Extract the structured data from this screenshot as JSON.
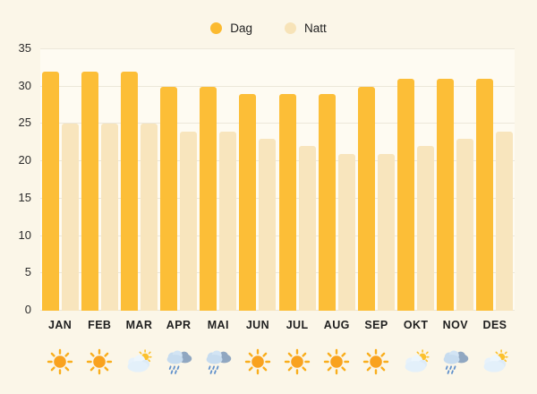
{
  "legend": {
    "items": [
      {
        "label": "Dag",
        "color": "#FBBA30"
      },
      {
        "label": "Natt",
        "color": "#F7E3B8"
      }
    ]
  },
  "chart_data": {
    "type": "bar",
    "title": "",
    "xlabel": "",
    "ylabel": "",
    "categories": [
      "JAN",
      "FEB",
      "MAR",
      "APR",
      "MAI",
      "JUN",
      "JUL",
      "AUG",
      "SEP",
      "OKT",
      "NOV",
      "DES"
    ],
    "series": [
      {
        "name": "Dag",
        "color": "#FCBE37",
        "values": [
          32,
          32,
          32,
          30,
          30,
          29,
          29,
          29,
          30,
          31,
          31,
          31
        ]
      },
      {
        "name": "Natt",
        "color": "#F8E5BD",
        "values": [
          25,
          25,
          25,
          24,
          24,
          23,
          22,
          21,
          21,
          22,
          23,
          24
        ]
      }
    ],
    "ylim": [
      0,
      35
    ],
    "yticks": [
      0,
      5,
      10,
      15,
      20,
      25,
      30,
      35
    ],
    "grid": true,
    "legend_position": "top-center"
  },
  "weather_row": {
    "icons": [
      {
        "month": "JAN",
        "icon": "sun-icon"
      },
      {
        "month": "FEB",
        "icon": "sun-icon"
      },
      {
        "month": "MAR",
        "icon": "partly-cloudy-icon"
      },
      {
        "month": "APR",
        "icon": "rain-icon"
      },
      {
        "month": "MAI",
        "icon": "rain-icon"
      },
      {
        "month": "JUN",
        "icon": "sun-icon"
      },
      {
        "month": "JUL",
        "icon": "sun-icon"
      },
      {
        "month": "AUG",
        "icon": "sun-icon"
      },
      {
        "month": "SEP",
        "icon": "sun-icon"
      },
      {
        "month": "OKT",
        "icon": "partly-cloudy-icon"
      },
      {
        "month": "NOV",
        "icon": "rain-icon"
      },
      {
        "month": "DES",
        "icon": "partly-cloudy-icon"
      }
    ]
  },
  "colors": {
    "page_bg": "#FBF6E8",
    "plot_bg": "#FEFBF2",
    "gridline": "#ECE7D9",
    "text": "#2B2B2B"
  }
}
